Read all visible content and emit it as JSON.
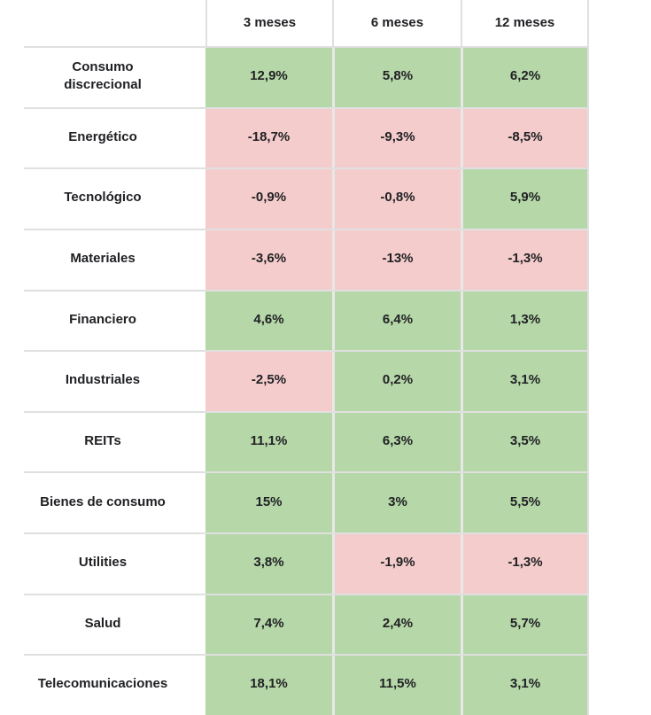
{
  "colors": {
    "positive_bg": "#b6d7a8",
    "negative_bg": "#f4cccc",
    "grid_line": "#e0e0e0",
    "column_gap": "#e8e8e8",
    "text": "#202124"
  },
  "table": {
    "columns": [
      "3 meses",
      "6 meses",
      "12 meses"
    ],
    "rows": [
      {
        "sector": "Consumo discrecional",
        "cells": [
          {
            "value": "12,9%",
            "tone": "positive"
          },
          {
            "value": "5,8%",
            "tone": "positive"
          },
          {
            "value": "6,2%",
            "tone": "positive"
          }
        ]
      },
      {
        "sector": "Energético",
        "cells": [
          {
            "value": "-18,7%",
            "tone": "negative"
          },
          {
            "value": "-9,3%",
            "tone": "negative"
          },
          {
            "value": "-8,5%",
            "tone": "negative"
          }
        ]
      },
      {
        "sector": "Tecnológico",
        "cells": [
          {
            "value": "-0,9%",
            "tone": "negative"
          },
          {
            "value": "-0,8%",
            "tone": "negative"
          },
          {
            "value": "5,9%",
            "tone": "positive"
          }
        ]
      },
      {
        "sector": "Materiales",
        "cells": [
          {
            "value": "-3,6%",
            "tone": "negative"
          },
          {
            "value": "-13%",
            "tone": "negative"
          },
          {
            "value": "-1,3%",
            "tone": "negative"
          }
        ]
      },
      {
        "sector": "Financiero",
        "cells": [
          {
            "value": "4,6%",
            "tone": "positive"
          },
          {
            "value": "6,4%",
            "tone": "positive"
          },
          {
            "value": "1,3%",
            "tone": "positive"
          }
        ]
      },
      {
        "sector": "Industriales",
        "cells": [
          {
            "value": "-2,5%",
            "tone": "negative"
          },
          {
            "value": "0,2%",
            "tone": "positive"
          },
          {
            "value": "3,1%",
            "tone": "positive"
          }
        ]
      },
      {
        "sector": "REITs",
        "cells": [
          {
            "value": "11,1%",
            "tone": "positive"
          },
          {
            "value": "6,3%",
            "tone": "positive"
          },
          {
            "value": "3,5%",
            "tone": "positive"
          }
        ]
      },
      {
        "sector": "Bienes de consumo",
        "cells": [
          {
            "value": "15%",
            "tone": "positive"
          },
          {
            "value": "3%",
            "tone": "positive"
          },
          {
            "value": "5,5%",
            "tone": "positive"
          }
        ]
      },
      {
        "sector": "Utilities",
        "cells": [
          {
            "value": "3,8%",
            "tone": "positive"
          },
          {
            "value": "-1,9%",
            "tone": "negative"
          },
          {
            "value": "-1,3%",
            "tone": "negative"
          }
        ]
      },
      {
        "sector": "Salud",
        "cells": [
          {
            "value": "7,4%",
            "tone": "positive"
          },
          {
            "value": "2,4%",
            "tone": "positive"
          },
          {
            "value": "5,7%",
            "tone": "positive"
          }
        ]
      },
      {
        "sector": "Telecomunicaciones",
        "cells": [
          {
            "value": "18,1%",
            "tone": "positive"
          },
          {
            "value": "11,5%",
            "tone": "positive"
          },
          {
            "value": "3,1%",
            "tone": "positive"
          }
        ]
      }
    ]
  },
  "chart_data": {
    "type": "heatmap",
    "categories": [
      "Consumo discrecional",
      "Energético",
      "Tecnológico",
      "Materiales",
      "Financiero",
      "Industriales",
      "REITs",
      "Bienes de consumo",
      "Utilities",
      "Salud",
      "Telecomunicaciones"
    ],
    "columns": [
      "3 meses",
      "6 meses",
      "12 meses"
    ],
    "series": [
      {
        "name": "3 meses",
        "values": [
          12.9,
          -18.7,
          -0.9,
          -3.6,
          4.6,
          -2.5,
          11.1,
          15,
          3.8,
          7.4,
          18.1
        ]
      },
      {
        "name": "6 meses",
        "values": [
          5.8,
          -9.3,
          -0.8,
          -13,
          6.4,
          0.2,
          6.3,
          3,
          -1.9,
          2.4,
          11.5
        ]
      },
      {
        "name": "12 meses",
        "values": [
          6.2,
          -8.5,
          5.9,
          -1.3,
          1.3,
          3.1,
          3.5,
          5.5,
          -1.3,
          5.7,
          3.1
        ]
      }
    ],
    "value_format": "percent, comma decimal separator",
    "cell_colors": {
      "positive": "#b6d7a8",
      "negative": "#f4cccc"
    },
    "title": "",
    "xlabel": "",
    "ylabel": "",
    "grid": true,
    "legend": "none"
  }
}
